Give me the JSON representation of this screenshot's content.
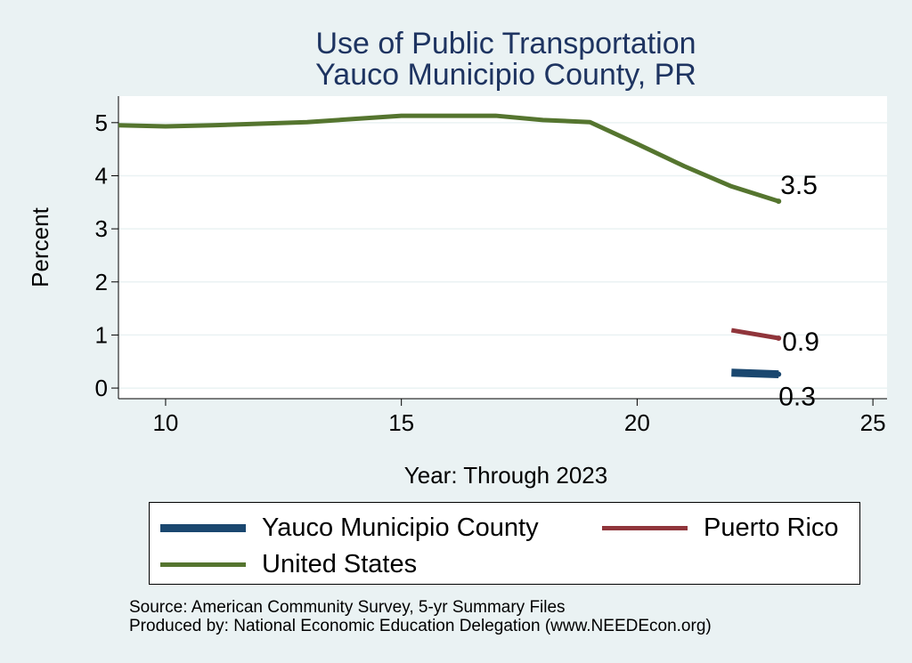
{
  "chart_data": {
    "type": "line",
    "title": "Use of Public Transportation",
    "subtitle": "Yauco Municipio County, PR",
    "xlabel": "Year: Through 2023",
    "ylabel": "Percent",
    "xlim": [
      9,
      25.3
    ],
    "ylim": [
      -0.2,
      5.5
    ],
    "xticks": [
      10,
      15,
      20,
      25
    ],
    "yticks": [
      0,
      1,
      2,
      3,
      4,
      5
    ],
    "grid": true,
    "legend_position": "bottom",
    "series": [
      {
        "name": "Yauco Municipio County",
        "color": "#1a476f",
        "x": [
          22,
          23
        ],
        "y": [
          0.29,
          0.26
        ],
        "end_label": "0.3"
      },
      {
        "name": "Puerto Rico",
        "color": "#90353b",
        "x": [
          22,
          23
        ],
        "y": [
          1.09,
          0.94
        ],
        "end_label": "0.9"
      },
      {
        "name": "United States",
        "color": "#55752f",
        "x": [
          9,
          10,
          11,
          12,
          13,
          14,
          15,
          16,
          17,
          18,
          19,
          20,
          21,
          22,
          23
        ],
        "y": [
          4.95,
          4.93,
          4.95,
          4.98,
          5.01,
          5.07,
          5.13,
          5.13,
          5.13,
          5.05,
          5.01,
          4.6,
          4.18,
          3.8,
          3.52
        ],
        "end_label": "3.5"
      }
    ]
  },
  "legend": {
    "items": [
      {
        "label": "Yauco Municipio County",
        "color": "#1a476f"
      },
      {
        "label": "Puerto Rico",
        "color": "#90353b"
      },
      {
        "label": "United States",
        "color": "#55752f"
      }
    ]
  },
  "source": {
    "line1": "Source: American Community Survey, 5-yr Summary Files",
    "line2": "Produced by: National Economic Education Delegation (www.NEEDEcon.org)"
  }
}
